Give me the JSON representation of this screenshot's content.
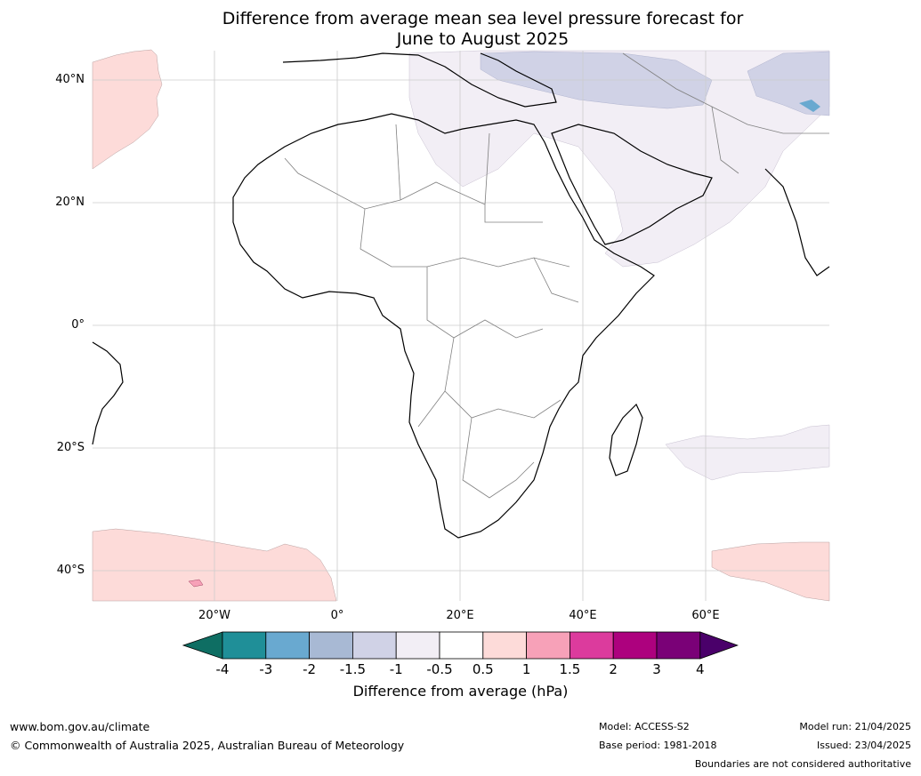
{
  "title_line1": "Difference from average mean sea level pressure forecast for",
  "title_line2": "June to August 2025",
  "lat_labels": [
    "40°N",
    "20°N",
    "0°",
    "20°S",
    "40°S"
  ],
  "lon_labels": [
    "20°W",
    "0°",
    "20°E",
    "40°E",
    "60°E"
  ],
  "colorbar": {
    "label": "Difference from average (hPa)",
    "ticks": [
      "-4",
      "-3",
      "-2",
      "-1.5",
      "-1",
      "-0.5",
      "0.5",
      "1",
      "1.5",
      "2",
      "3",
      "4"
    ],
    "colors": [
      "#0e6e63",
      "#1f8f98",
      "#69a9d0",
      "#a8b9d4",
      "#d0d2e6",
      "#f2eef5",
      "#ffffff",
      "#fddbd9",
      "#f7a1b8",
      "#dc3b9d",
      "#ad017e",
      "#7a0177",
      "#4a006a"
    ]
  },
  "footer": {
    "website": "www.bom.gov.au/climate",
    "copyright": "© Commonwealth of Australia 2025, Australian Bureau of Meteorology",
    "model": "Model: ACCESS-S2",
    "base_period": "Base period: 1981-2018",
    "model_run": "Model run: 21/04/2025",
    "issued": "Issued: 23/04/2025",
    "disclaimer": "Boundaries are not considered authoritative"
  }
}
